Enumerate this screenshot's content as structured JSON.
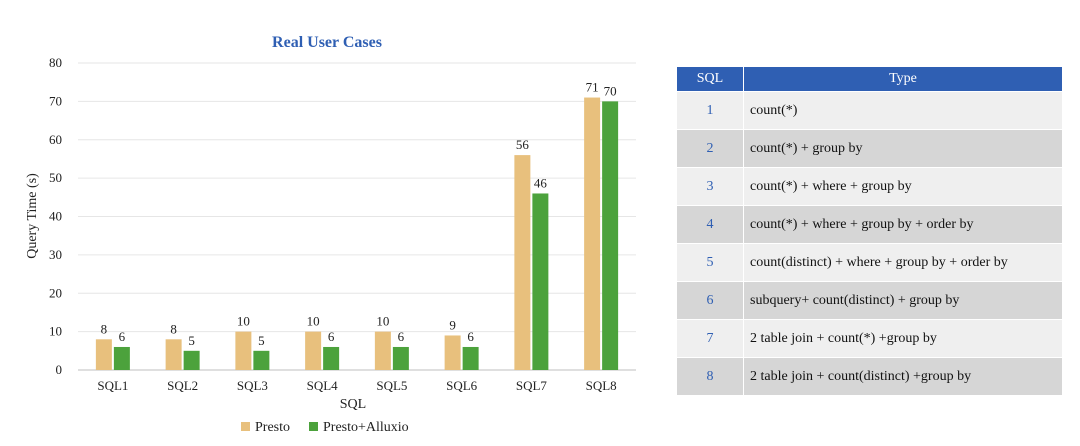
{
  "chart_data": {
    "type": "bar",
    "title": "Real User Cases",
    "xlabel": "SQL",
    "ylabel": "Query Time (s)",
    "ylim": [
      0,
      80
    ],
    "yticks": [
      0,
      10,
      20,
      30,
      40,
      50,
      60,
      70,
      80
    ],
    "categories": [
      "SQL1",
      "SQL2",
      "SQL3",
      "SQL4",
      "SQL5",
      "SQL6",
      "SQL7",
      "SQL8"
    ],
    "series": [
      {
        "name": "Presto",
        "color": "#e8c07d",
        "values": [
          8,
          8,
          10,
          10,
          10,
          9,
          56,
          71
        ]
      },
      {
        "name": "Presto+Alluxio",
        "color": "#4ca23c",
        "values": [
          6,
          5,
          5,
          6,
          6,
          6,
          46,
          70
        ]
      }
    ],
    "legend_position": "bottom"
  },
  "table": {
    "headers": [
      "SQL",
      "Type"
    ],
    "rows": [
      {
        "sql": "1",
        "type": "count(*)"
      },
      {
        "sql": "2",
        "type": "count(*) + group by"
      },
      {
        "sql": "3",
        "type": "count(*) + where + group by"
      },
      {
        "sql": "4",
        "type": "count(*) + where + group by + order by"
      },
      {
        "sql": "5",
        "type": "count(distinct) + where + group by + order by"
      },
      {
        "sql": "6",
        "type": "subquery+ count(distinct) + group by"
      },
      {
        "sql": "7",
        "type": "2 table join + count(*) +group by"
      },
      {
        "sql": "8",
        "type": "2 table join + count(distinct) +group by"
      }
    ]
  }
}
